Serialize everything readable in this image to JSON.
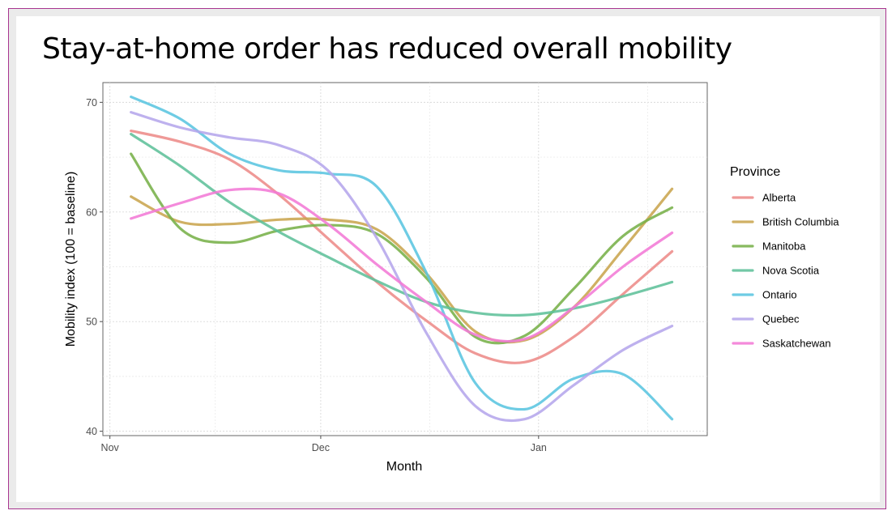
{
  "slide": {
    "title": "Stay-at-home order has reduced overall mobility"
  },
  "chart_data": {
    "type": "line",
    "xlabel": "Month",
    "ylabel": "Mobility index (100 = baseline)",
    "x_ticks": [
      {
        "label": "Nov",
        "date": "2020-11-01"
      },
      {
        "label": "Dec",
        "date": "2020-12-01"
      },
      {
        "label": "Jan",
        "date": "2021-01-01"
      }
    ],
    "xlim": [
      "2020-10-31",
      "2021-01-25"
    ],
    "y_ticks": [
      40,
      50,
      60,
      70
    ],
    "ylim": [
      39.6,
      71.8
    ],
    "grid": true,
    "legend": {
      "title": "Province",
      "position": "right"
    },
    "x": [
      "2020-11-04",
      "2020-11-11",
      "2020-11-18",
      "2020-11-25",
      "2020-12-02",
      "2020-12-09",
      "2020-12-16",
      "2020-12-23",
      "2020-12-30",
      "2021-01-06",
      "2021-01-13",
      "2021-01-20"
    ],
    "series": [
      {
        "name": "Alberta",
        "color": "#ed8b89",
        "values": [
          67.4,
          66.4,
          64.8,
          61.6,
          57.6,
          53.6,
          50.1,
          47.1,
          46.3,
          48.6,
          52.5,
          56.4
        ]
      },
      {
        "name": "British Columbia",
        "color": "#caa54e",
        "values": [
          61.4,
          59.1,
          58.9,
          59.3,
          59.3,
          58.4,
          54.4,
          49.1,
          48.3,
          51.3,
          56.6,
          62.1
        ]
      },
      {
        "name": "Manitoba",
        "color": "#77b049",
        "values": [
          65.3,
          58.5,
          57.2,
          58.3,
          58.8,
          58.0,
          54.0,
          48.6,
          48.7,
          53.0,
          57.8,
          60.4
        ]
      },
      {
        "name": "Nova Scotia",
        "color": "#5ec09a",
        "values": [
          67.1,
          64.2,
          60.9,
          58.2,
          55.9,
          53.7,
          51.8,
          50.8,
          50.6,
          51.2,
          52.3,
          53.6
        ]
      },
      {
        "name": "Ontario",
        "color": "#5ac5e0",
        "values": [
          70.5,
          68.5,
          65.3,
          63.8,
          63.5,
          62.3,
          54.5,
          44.4,
          42.0,
          44.8,
          45.2,
          41.1
        ]
      },
      {
        "name": "Quebec",
        "color": "#b5a6ec",
        "values": [
          69.1,
          67.7,
          66.8,
          66.1,
          63.8,
          57.6,
          49.0,
          42.3,
          41.1,
          44.2,
          47.4,
          49.6
        ]
      },
      {
        "name": "Saskatchewan",
        "color": "#f27ad6",
        "values": [
          59.4,
          60.8,
          62.0,
          61.7,
          58.9,
          55.2,
          51.8,
          48.8,
          48.4,
          51.3,
          55.0,
          58.1
        ]
      }
    ]
  }
}
